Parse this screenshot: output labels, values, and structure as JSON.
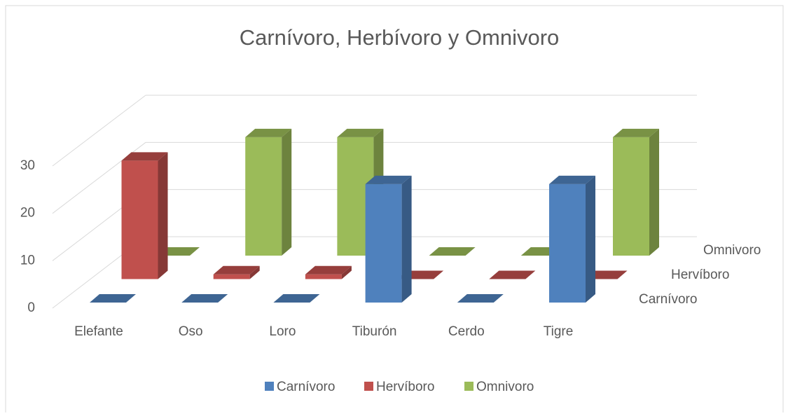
{
  "chart_data": {
    "type": "bar3d",
    "title": "Carnívoro, Herbívoro y Omnivoro",
    "categories": [
      "Elefante",
      "Oso",
      "Loro",
      "Tiburón",
      "Cerdo",
      "Tigre"
    ],
    "series": [
      {
        "name": "Carnívoro",
        "color": "#4f81bd",
        "values": [
          0,
          0,
          0,
          25,
          0,
          25
        ]
      },
      {
        "name": "Hervíboro",
        "color": "#c0504d",
        "values": [
          25,
          1,
          1,
          0,
          0,
          0
        ]
      },
      {
        "name": "Omnivoro",
        "color": "#9bbb59",
        "values": [
          0,
          25,
          25,
          0,
          0,
          25
        ]
      }
    ],
    "ylim": [
      0,
      30
    ],
    "yticks": [
      0,
      10,
      20,
      30
    ],
    "grid": true,
    "legend": "bottom"
  }
}
